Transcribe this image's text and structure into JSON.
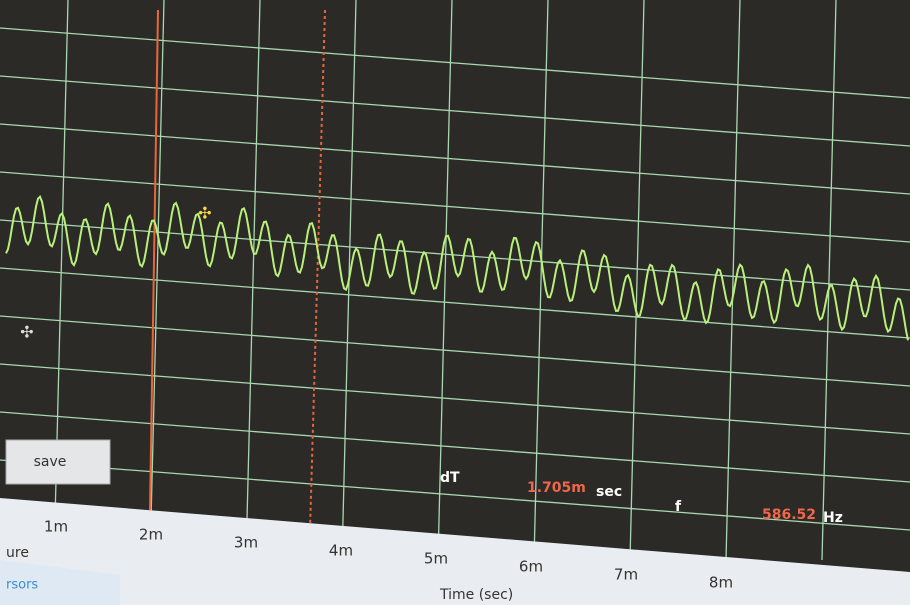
{
  "button": {
    "label": "save"
  },
  "readout": {
    "dt_label": "dT",
    "dt_value": "1.705m",
    "dt_unit": "sec",
    "f_label": "f",
    "f_value": "586.52",
    "f_unit": "Hz"
  },
  "axis": {
    "ticks": [
      "1m",
      "2m",
      "3m",
      "4m",
      "5m",
      "6m",
      "7m",
      "8m"
    ],
    "label": "Time (sec)"
  },
  "panel": {
    "left_label": "ure",
    "tab_label": "rsors"
  }
}
